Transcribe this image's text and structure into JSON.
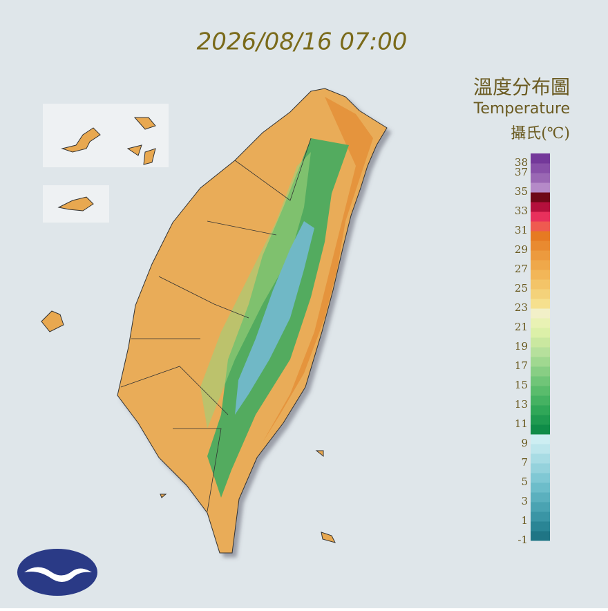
{
  "header": {
    "timestamp": "2026/08/16 07:00",
    "title": "溫度分布圖",
    "subtitle": "Temperature",
    "unit": "攝氏(℃)"
  },
  "legend": {
    "range": [
      -1,
      39
    ],
    "ticks": [
      38,
      37,
      35,
      33,
      31,
      29,
      27,
      25,
      23,
      21,
      19,
      17,
      15,
      13,
      11,
      9,
      7,
      5,
      3,
      1,
      -1
    ],
    "colors": [
      "#1f7585",
      "#2a8595",
      "#3a95a5",
      "#4aa3b2",
      "#5bb0be",
      "#6dbdca",
      "#80c8d4",
      "#95d2dc",
      "#a8dce4",
      "#bde6ec",
      "#cdeef2",
      "#0f8c48",
      "#1f9a50",
      "#30a758",
      "#45b262",
      "#5abc6c",
      "#70c578",
      "#88ce84",
      "#a0d890",
      "#b6e09c",
      "#cae8a0",
      "#dcf0a8",
      "#e9f2b4",
      "#f2f0c8",
      "#f6e08e",
      "#f4d27a",
      "#f3c468",
      "#f2b658",
      "#efa84a",
      "#ec9a3e",
      "#e98a30",
      "#e67a22",
      "#ef5a50",
      "#e8305c",
      "#b4103c",
      "#6e0818",
      "#b58ac8",
      "#9a68b4",
      "#8850a8",
      "#74389a"
    ]
  }
}
